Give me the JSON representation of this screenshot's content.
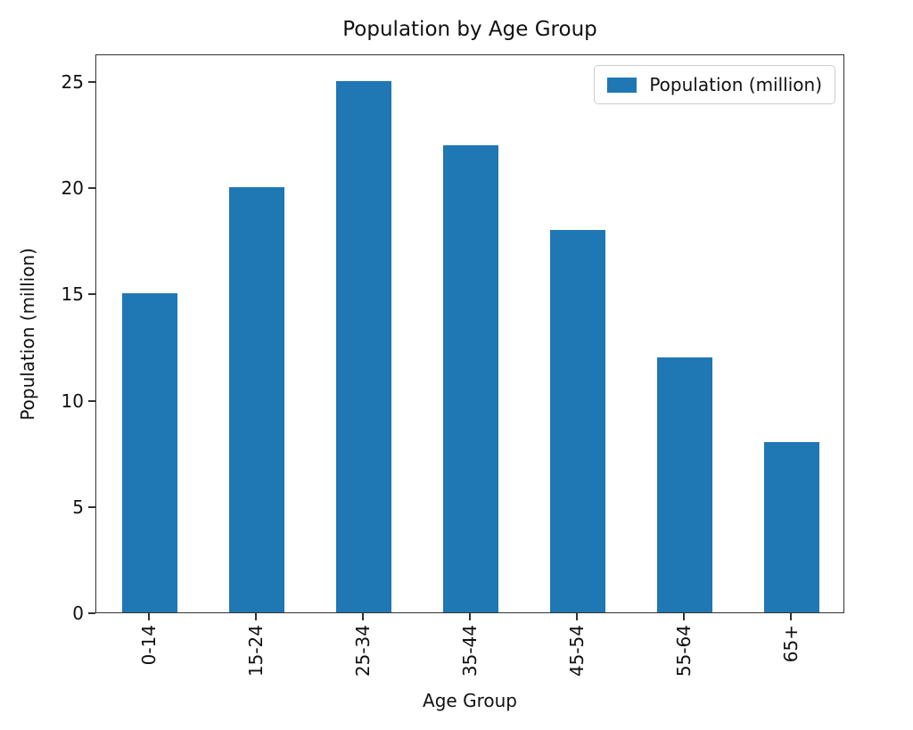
{
  "chart_data": {
    "type": "bar",
    "title": "Population by Age Group",
    "xlabel": "Age Group",
    "ylabel": "Population (million)",
    "categories": [
      "0-14",
      "15-24",
      "25-34",
      "35-44",
      "45-54",
      "55-64",
      "65+"
    ],
    "series": [
      {
        "name": "Population (million)",
        "values": [
          15,
          20,
          25,
          22,
          18,
          12,
          8
        ]
      }
    ],
    "yticks": [
      0,
      5,
      10,
      15,
      20,
      25
    ],
    "ylim": [
      0,
      26.3
    ],
    "grid": false,
    "bar_color": "#1f77b4",
    "legend": {
      "position": "upper right",
      "entries": [
        "Population (million)"
      ]
    }
  }
}
